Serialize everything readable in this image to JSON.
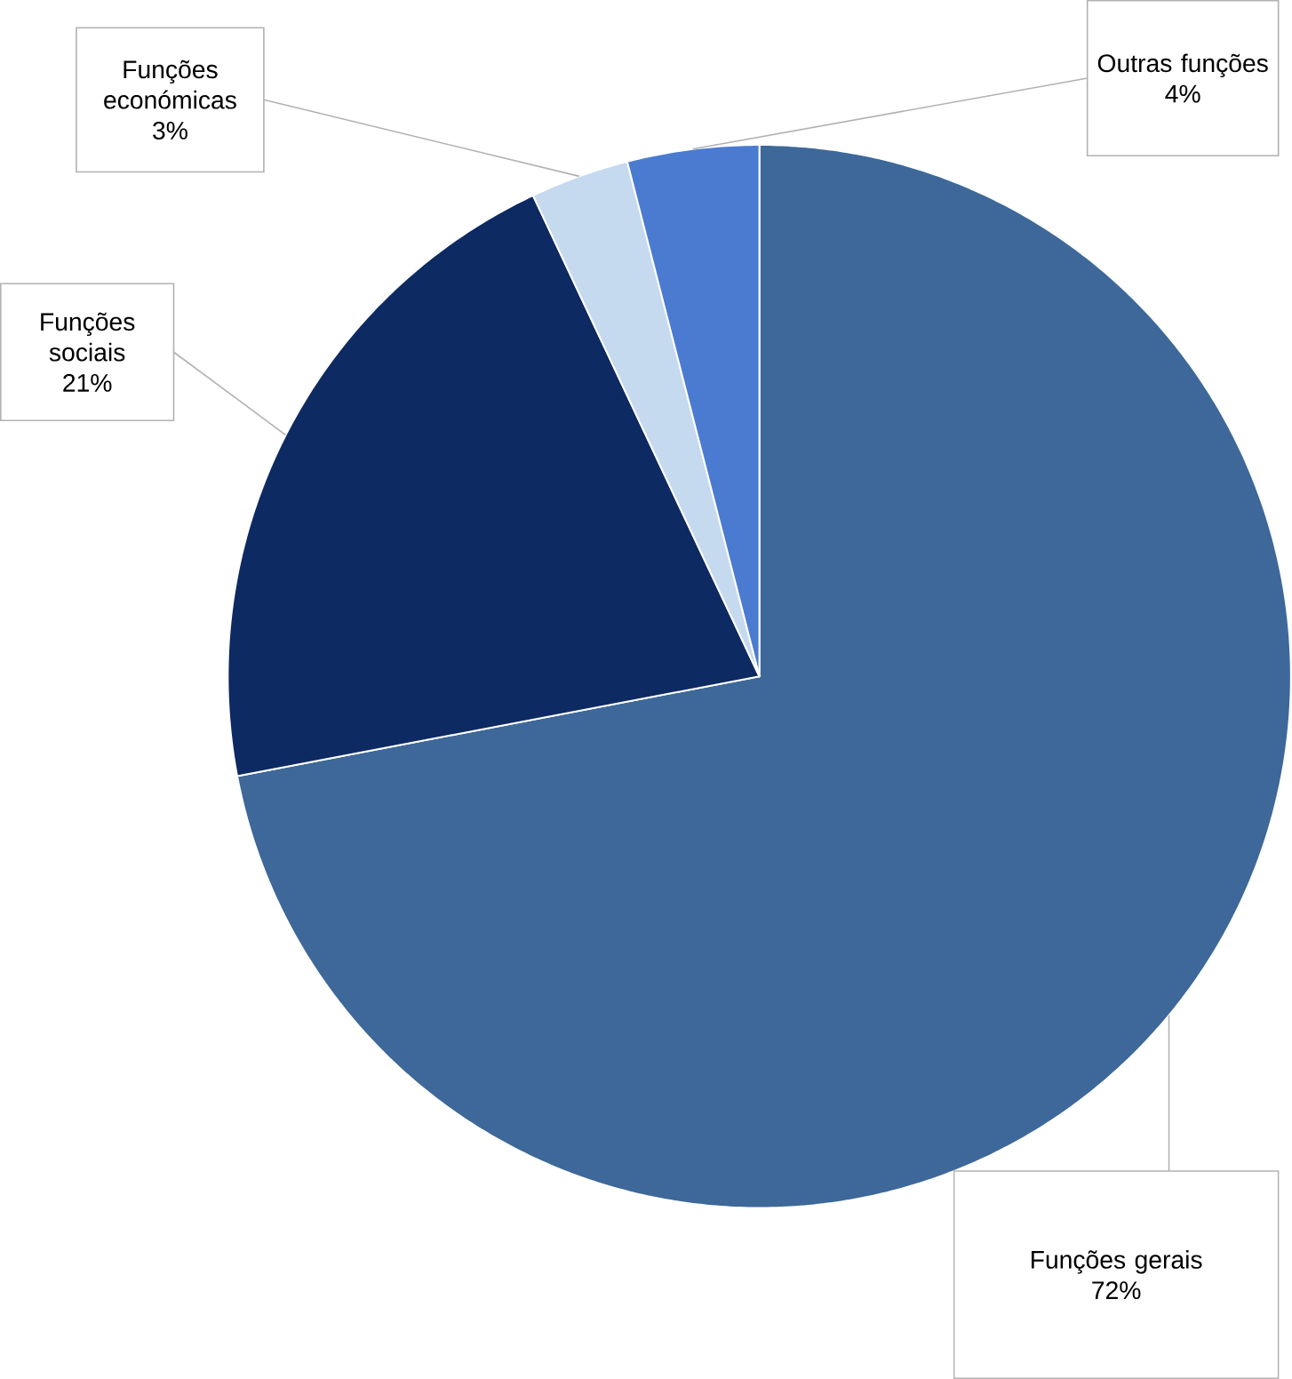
{
  "chart_data": {
    "type": "pie",
    "categories": [
      "Funções gerais",
      "Funções sociais",
      "Funções económicas",
      "Outras funções"
    ],
    "values": [
      72,
      21,
      3,
      4
    ],
    "value_labels": [
      "72%",
      "21%",
      "3%",
      "4%"
    ],
    "colors": [
      "#3d6899",
      "#0d2a62",
      "#c5d9ef",
      "#4a7bd0"
    ]
  }
}
